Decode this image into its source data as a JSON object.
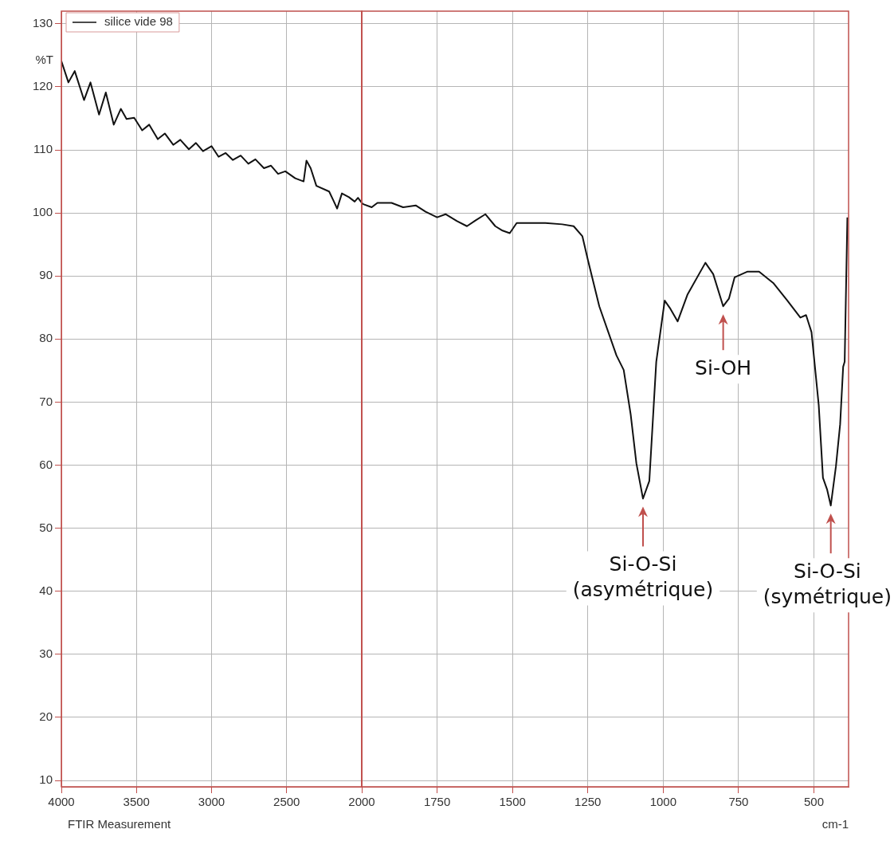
{
  "chart_data": [
    {
      "type": "line",
      "ylabel": "%T",
      "legend": "top left",
      "grid": true,
      "xlim": [
        4000,
        2000
      ],
      "ylim": [
        9,
        132
      ],
      "xticks": [
        4000,
        3500,
        3000,
        2500,
        2000
      ],
      "yticks": [
        10,
        20,
        30,
        40,
        50,
        60,
        70,
        80,
        90,
        100,
        110,
        120,
        130
      ],
      "ref_lines": [
        {
          "axis": "x",
          "value": 2000,
          "color": "#c0504d"
        }
      ],
      "x": [
        4000,
        3953,
        3911,
        3849,
        3806,
        3749,
        3704,
        3651,
        3604,
        3566,
        3515,
        3462,
        3415,
        3358,
        3311,
        3255,
        3208,
        3151,
        3104,
        3057,
        3000,
        2953,
        2906,
        2858,
        2806,
        2755,
        2708,
        2651,
        2604,
        2557,
        2509,
        2443,
        2387,
        2368,
        2340,
        2302,
        2217,
        2189,
        2164,
        2132,
        2085,
        2047,
        2025,
        2000
      ],
      "series": [
        {
          "name": "silice vide 98",
          "color": "#111111",
          "values": [
            124.1,
            120.7,
            122.5,
            117.9,
            120.7,
            115.6,
            119.1,
            114.0,
            116.5,
            114.9,
            115.1,
            113.1,
            114.0,
            111.7,
            112.6,
            110.8,
            111.6,
            110.1,
            111.1,
            109.8,
            110.6,
            108.9,
            109.5,
            108.4,
            109.1,
            107.8,
            108.5,
            107.1,
            107.5,
            106.2,
            106.6,
            105.5,
            105.0,
            108.3,
            107.1,
            104.3,
            103.4,
            102.0,
            100.7,
            103.1,
            102.5,
            101.8,
            102.4,
            101.6
          ]
        }
      ],
      "annotations": [
        "FTIR Measurement"
      ]
    },
    {
      "type": "line",
      "xlabel": "cm-1",
      "grid": true,
      "tick_labels": "x",
      "xlim": [
        2000,
        385
      ],
      "ylim": [
        9,
        132
      ],
      "xticks": [
        1750,
        1500,
        1250,
        1000,
        750,
        500
      ],
      "yticks": [
        10,
        20,
        30,
        40,
        50,
        60,
        70,
        80,
        90,
        100,
        110,
        120,
        130
      ],
      "x": [
        2000,
        1995,
        1967,
        1948,
        1901,
        1863,
        1821,
        1788,
        1750,
        1722,
        1684,
        1651,
        1623,
        1590,
        1557,
        1533,
        1509,
        1486,
        1439,
        1391,
        1335,
        1297,
        1268,
        1250,
        1212,
        1155,
        1131,
        1108,
        1089,
        1067,
        1046,
        1023,
        995,
        976,
        952,
        919,
        860,
        834,
        801,
        782,
        763,
        720,
        682,
        635,
        588,
        545,
        526,
        508,
        484,
        470,
        456,
        444,
        427,
        413,
        403,
        398,
        389
      ],
      "series": [
        {
          "color": "#111111",
          "values": [
            101.6,
            101.4,
            100.9,
            101.6,
            101.6,
            100.9,
            101.2,
            100.2,
            99.3,
            99.8,
            98.7,
            97.9,
            98.8,
            99.8,
            97.9,
            97.2,
            96.8,
            98.4,
            98.4,
            98.4,
            98.2,
            97.9,
            96.3,
            92.6,
            85.2,
            77.4,
            75.1,
            68.1,
            60.3,
            54.7,
            57.5,
            76.4,
            86.1,
            84.8,
            82.8,
            87.1,
            92.1,
            90.3,
            85.2,
            86.4,
            89.8,
            90.7,
            90.7,
            88.9,
            86.1,
            83.4,
            83.8,
            81.1,
            69.5,
            58.0,
            56.1,
            53.6,
            59.8,
            66.5,
            75.6,
            76.4,
            99.3
          ]
        }
      ],
      "annotations": [
        {
          "text": "Si-O-Si\n(asymétrique)",
          "x": 1067,
          "y": 54.7
        },
        {
          "text": "Si-OH",
          "x": 801,
          "y": 85.2
        },
        {
          "text": "Si-O-Si\n(symétrique)",
          "x": 444,
          "y": 53.6
        }
      ]
    }
  ]
}
